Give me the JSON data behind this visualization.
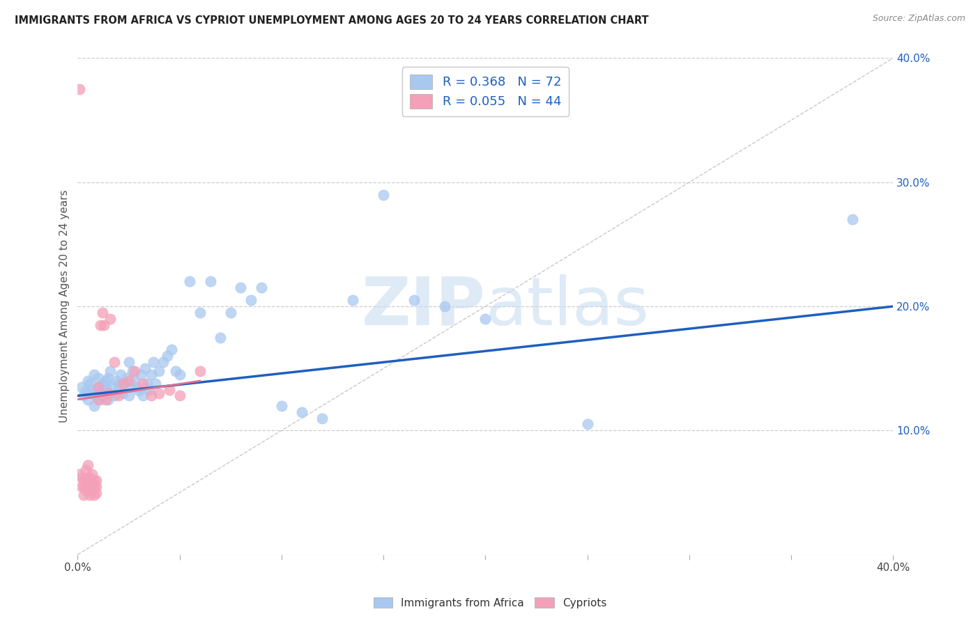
{
  "title": "IMMIGRANTS FROM AFRICA VS CYPRIOT UNEMPLOYMENT AMONG AGES 20 TO 24 YEARS CORRELATION CHART",
  "source": "Source: ZipAtlas.com",
  "ylabel": "Unemployment Among Ages 20 to 24 years",
  "xlim": [
    0.0,
    0.4
  ],
  "ylim": [
    0.0,
    0.4
  ],
  "xtick_minor_vals": [
    0.0,
    0.05,
    0.1,
    0.15,
    0.2,
    0.25,
    0.3,
    0.35,
    0.4
  ],
  "xtick_edge_labels": {
    "0": "0.0%",
    "0.40": "40.0%"
  },
  "ytick_vals": [
    0.1,
    0.2,
    0.3,
    0.4
  ],
  "ytick_labels": [
    "10.0%",
    "20.0%",
    "30.0%",
    "40.0%"
  ],
  "legend_label1": "Immigrants from Africa",
  "legend_label2": "Cypriots",
  "R1": "0.368",
  "N1": "72",
  "R2": "0.055",
  "N2": "44",
  "color_blue": "#A8C8F0",
  "color_pink": "#F4A0B8",
  "trendline1_color": "#1E5FBF",
  "trendline2_color": "#E07090",
  "diagonal_color": "#C8C8C8",
  "grid_color": "#CCCCCC",
  "title_color": "#222222",
  "source_color": "#888888",
  "watermark_color": "#C8DCF0",
  "blue_scatter_x": [
    0.002,
    0.003,
    0.004,
    0.005,
    0.005,
    0.006,
    0.006,
    0.007,
    0.008,
    0.008,
    0.009,
    0.01,
    0.01,
    0.01,
    0.011,
    0.012,
    0.012,
    0.013,
    0.014,
    0.014,
    0.015,
    0.015,
    0.016,
    0.016,
    0.017,
    0.018,
    0.019,
    0.02,
    0.02,
    0.021,
    0.022,
    0.023,
    0.024,
    0.025,
    0.025,
    0.026,
    0.027,
    0.028,
    0.029,
    0.03,
    0.031,
    0.032,
    0.033,
    0.034,
    0.035,
    0.036,
    0.037,
    0.038,
    0.04,
    0.042,
    0.044,
    0.046,
    0.048,
    0.05,
    0.055,
    0.06,
    0.065,
    0.07,
    0.075,
    0.08,
    0.085,
    0.09,
    0.1,
    0.11,
    0.12,
    0.135,
    0.15,
    0.165,
    0.18,
    0.2,
    0.25,
    0.38
  ],
  "blue_scatter_y": [
    0.135,
    0.128,
    0.132,
    0.14,
    0.125,
    0.13,
    0.138,
    0.133,
    0.12,
    0.145,
    0.128,
    0.135,
    0.13,
    0.142,
    0.125,
    0.138,
    0.133,
    0.128,
    0.14,
    0.135,
    0.125,
    0.142,
    0.13,
    0.148,
    0.135,
    0.128,
    0.14,
    0.138,
    0.133,
    0.145,
    0.13,
    0.138,
    0.142,
    0.128,
    0.155,
    0.135,
    0.148,
    0.14,
    0.135,
    0.132,
    0.145,
    0.128,
    0.15,
    0.138,
    0.133,
    0.145,
    0.155,
    0.138,
    0.148,
    0.155,
    0.16,
    0.165,
    0.148,
    0.145,
    0.22,
    0.195,
    0.22,
    0.175,
    0.195,
    0.215,
    0.205,
    0.215,
    0.12,
    0.115,
    0.11,
    0.205,
    0.29,
    0.205,
    0.2,
    0.19,
    0.105,
    0.27
  ],
  "pink_scatter_x": [
    0.001,
    0.001,
    0.002,
    0.002,
    0.003,
    0.003,
    0.003,
    0.004,
    0.004,
    0.004,
    0.005,
    0.005,
    0.005,
    0.006,
    0.006,
    0.006,
    0.007,
    0.007,
    0.007,
    0.008,
    0.008,
    0.008,
    0.009,
    0.009,
    0.009,
    0.01,
    0.01,
    0.011,
    0.012,
    0.013,
    0.014,
    0.015,
    0.016,
    0.018,
    0.02,
    0.022,
    0.025,
    0.028,
    0.032,
    0.036,
    0.04,
    0.045,
    0.05,
    0.06
  ],
  "pink_scatter_y": [
    0.375,
    0.065,
    0.055,
    0.062,
    0.055,
    0.06,
    0.048,
    0.052,
    0.06,
    0.068,
    0.055,
    0.062,
    0.072,
    0.055,
    0.062,
    0.048,
    0.058,
    0.065,
    0.052,
    0.06,
    0.048,
    0.055,
    0.06,
    0.055,
    0.05,
    0.135,
    0.125,
    0.185,
    0.195,
    0.185,
    0.125,
    0.13,
    0.19,
    0.155,
    0.128,
    0.138,
    0.14,
    0.148,
    0.138,
    0.128,
    0.13,
    0.133,
    0.128,
    0.148
  ],
  "trendline1_x": [
    0.0,
    0.4
  ],
  "trendline1_y": [
    0.128,
    0.2
  ],
  "trendline2_x": [
    0.0,
    0.06
  ],
  "trendline2_y": [
    0.125,
    0.14
  ]
}
